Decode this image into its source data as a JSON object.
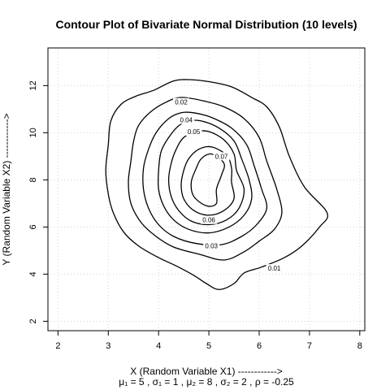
{
  "chart_data": {
    "type": "contour",
    "title": "Contour Plot of Bivariate Normal Distribution (10 levels)",
    "xlabel": "X (Random Variable X1) ------------>",
    "ylabel": "Y (Random Variable X2) ------------>",
    "xlim": [
      1.8,
      8.1
    ],
    "ylim": [
      1.6,
      13.6
    ],
    "x_ticks": [
      2,
      3,
      4,
      5,
      6,
      7,
      8
    ],
    "y_ticks": [
      2,
      4,
      6,
      8,
      10,
      12
    ],
    "grid": true,
    "parameters": {
      "mu1": "μ₁ = 5",
      "sigma1": "σ₁ = 1",
      "mu2": "μ₂ = 8",
      "sigma2": "σ₂ = 2",
      "rho": "ρ = -0.25"
    },
    "levels": [
      {
        "level": 0.01,
        "label": "0.01",
        "label_pos": [
          6.3,
          4.25
        ],
        "points": [
          [
            5.05,
            12.15
          ],
          [
            5.45,
            11.95
          ],
          [
            5.85,
            11.5
          ],
          [
            6.15,
            11.1
          ],
          [
            6.4,
            10.25
          ],
          [
            6.6,
            9.0
          ],
          [
            6.9,
            7.7
          ],
          [
            7.35,
            6.6
          ],
          [
            7.2,
            6.0
          ],
          [
            6.85,
            5.2
          ],
          [
            6.5,
            4.7
          ],
          [
            6.05,
            4.3
          ],
          [
            5.7,
            4.05
          ],
          [
            5.5,
            3.6
          ],
          [
            5.2,
            3.35
          ],
          [
            4.95,
            3.6
          ],
          [
            4.7,
            3.95
          ],
          [
            4.35,
            4.35
          ],
          [
            4.0,
            4.7
          ],
          [
            3.6,
            5.2
          ],
          [
            3.3,
            5.8
          ],
          [
            3.1,
            6.6
          ],
          [
            3.0,
            7.4
          ],
          [
            2.95,
            8.4
          ],
          [
            3.0,
            9.5
          ],
          [
            3.05,
            10.5
          ],
          [
            3.25,
            11.2
          ],
          [
            3.55,
            11.55
          ],
          [
            3.9,
            11.8
          ],
          [
            4.3,
            12.2
          ],
          [
            4.65,
            12.25
          ],
          [
            5.05,
            12.15
          ]
        ]
      },
      {
        "level": 0.02,
        "label": "0.02",
        "label_pos": [
          4.45,
          11.3
        ],
        "points": [
          [
            4.45,
            11.5
          ],
          [
            4.9,
            11.35
          ],
          [
            5.3,
            11.1
          ],
          [
            5.7,
            10.6
          ],
          [
            6.0,
            9.8
          ],
          [
            6.15,
            8.8
          ],
          [
            6.35,
            7.6
          ],
          [
            6.45,
            6.6
          ],
          [
            6.3,
            5.9
          ],
          [
            6.0,
            5.4
          ],
          [
            5.7,
            4.95
          ],
          [
            5.3,
            4.6
          ],
          [
            4.8,
            4.85
          ],
          [
            4.3,
            5.15
          ],
          [
            3.95,
            5.6
          ],
          [
            3.65,
            6.2
          ],
          [
            3.45,
            7.0
          ],
          [
            3.4,
            7.9
          ],
          [
            3.45,
            8.8
          ],
          [
            3.5,
            9.6
          ],
          [
            3.6,
            10.3
          ],
          [
            3.85,
            10.9
          ],
          [
            4.15,
            11.3
          ],
          [
            4.45,
            11.5
          ]
        ]
      },
      {
        "level": 0.03,
        "label": "0.03",
        "label_pos": [
          5.05,
          5.2
        ],
        "points": [
          [
            4.7,
            10.85
          ],
          [
            5.05,
            10.65
          ],
          [
            5.45,
            10.2
          ],
          [
            5.75,
            9.5
          ],
          [
            5.9,
            8.6
          ],
          [
            6.05,
            7.6
          ],
          [
            6.15,
            6.8
          ],
          [
            5.95,
            6.1
          ],
          [
            5.65,
            5.6
          ],
          [
            5.25,
            5.25
          ],
          [
            4.75,
            5.3
          ],
          [
            4.3,
            5.6
          ],
          [
            4.0,
            6.1
          ],
          [
            3.8,
            6.8
          ],
          [
            3.7,
            7.6
          ],
          [
            3.7,
            8.5
          ],
          [
            3.8,
            9.3
          ],
          [
            3.95,
            10.0
          ],
          [
            4.2,
            10.6
          ],
          [
            4.45,
            10.85
          ],
          [
            4.7,
            10.85
          ]
        ]
      },
      {
        "level": 0.04,
        "label": "0.04",
        "label_pos": [
          4.55,
          10.55
        ],
        "points": [
          [
            4.85,
            10.5
          ],
          [
            5.2,
            10.2
          ],
          [
            5.5,
            9.65
          ],
          [
            5.65,
            8.9
          ],
          [
            5.8,
            8.0
          ],
          [
            5.85,
            7.2
          ],
          [
            5.7,
            6.5
          ],
          [
            5.4,
            6.0
          ],
          [
            5.0,
            5.75
          ],
          [
            4.6,
            5.9
          ],
          [
            4.3,
            6.3
          ],
          [
            4.1,
            6.9
          ],
          [
            4.0,
            7.6
          ],
          [
            4.0,
            8.4
          ],
          [
            4.05,
            9.2
          ],
          [
            4.2,
            9.8
          ],
          [
            4.4,
            10.3
          ],
          [
            4.6,
            10.5
          ],
          [
            4.85,
            10.5
          ]
        ]
      },
      {
        "level": 0.05,
        "label": "0.05",
        "label_pos": [
          4.7,
          10.05
        ],
        "points": [
          [
            5.0,
            10.05
          ],
          [
            5.3,
            9.7
          ],
          [
            5.5,
            9.1
          ],
          [
            5.55,
            8.4
          ],
          [
            5.7,
            7.6
          ],
          [
            5.6,
            6.8
          ],
          [
            5.35,
            6.3
          ],
          [
            5.0,
            6.1
          ],
          [
            4.65,
            6.25
          ],
          [
            4.4,
            6.7
          ],
          [
            4.25,
            7.3
          ],
          [
            4.2,
            8.0
          ],
          [
            4.25,
            8.7
          ],
          [
            4.35,
            9.3
          ],
          [
            4.5,
            9.8
          ],
          [
            4.75,
            10.05
          ],
          [
            5.0,
            10.05
          ]
        ]
      },
      {
        "level": 0.06,
        "label": "0.06",
        "label_pos": [
          5.0,
          6.3
        ],
        "points": [
          [
            5.05,
            9.4
          ],
          [
            5.35,
            9.05
          ],
          [
            5.45,
            8.5
          ],
          [
            5.45,
            7.9
          ],
          [
            5.5,
            7.2
          ],
          [
            5.3,
            6.7
          ],
          [
            5.0,
            6.5
          ],
          [
            4.7,
            6.7
          ],
          [
            4.5,
            7.2
          ],
          [
            4.45,
            7.8
          ],
          [
            4.5,
            8.4
          ],
          [
            4.6,
            8.9
          ],
          [
            4.8,
            9.3
          ],
          [
            5.05,
            9.4
          ]
        ]
      },
      {
        "level": 0.07,
        "label": "0.07",
        "label_pos": [
          5.25,
          9.0
        ],
        "points": [
          [
            5.05,
            9.1
          ],
          [
            5.3,
            8.7
          ],
          [
            5.25,
            8.2
          ],
          [
            5.15,
            7.6
          ],
          [
            5.15,
            7.0
          ],
          [
            4.95,
            6.9
          ],
          [
            4.7,
            7.3
          ],
          [
            4.65,
            7.9
          ],
          [
            4.75,
            8.5
          ],
          [
            4.85,
            8.9
          ],
          [
            5.05,
            9.1
          ]
        ]
      }
    ]
  }
}
